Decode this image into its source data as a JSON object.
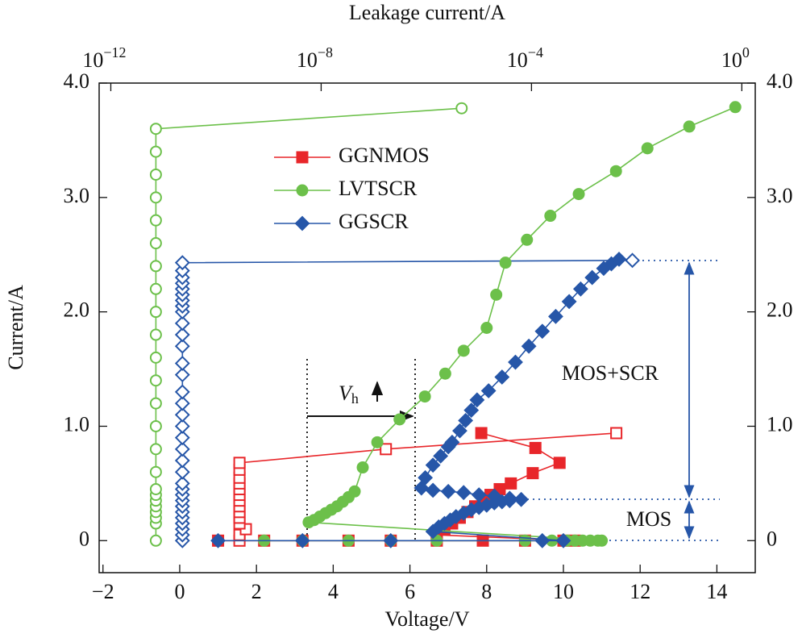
{
  "chart_data": {
    "type": "scatter",
    "xlabel": "Voltage/V",
    "ylabel": "Current/A",
    "x2label": "Leakage current/A",
    "xlim": [
      -2.1,
      15
    ],
    "xticks": [
      {
        "value": -2,
        "label": "−2"
      },
      0,
      2,
      4,
      6,
      8,
      10,
      12,
      14
    ],
    "ylim": [
      -0.28,
      4.0
    ],
    "yticks": [
      0,
      {
        "value": 1,
        "label": "1.0"
      },
      {
        "value": 2,
        "label": "2.0"
      },
      {
        "value": 3,
        "label": "3.0"
      },
      {
        "value": 4,
        "label": "4.0"
      }
    ],
    "x2lim": [
      6e-13,
      1.8
    ],
    "x2scale": "log",
    "x2ticks": [
      {
        "value": 1e-12,
        "label": "10",
        "exponent": "−12"
      },
      {
        "value": 1e-08,
        "label": "10",
        "exponent": "−8"
      },
      {
        "value": 0.0001,
        "label": "10",
        "exponent": "−4"
      },
      {
        "value": 1,
        "label": "10",
        "exponent": "0"
      }
    ],
    "series": [
      {
        "name": "GGNMOS",
        "color": "#e8262a",
        "marker": "square",
        "filled": true,
        "x": [
          1.0,
          2.2,
          3.2,
          4.4,
          5.5,
          6.7,
          7.9,
          9.0,
          10.0,
          10.3,
          6.7,
          6.9,
          7.1,
          7.3,
          7.5,
          7.7,
          7.9,
          8.1,
          8.34,
          8.63,
          9.2,
          9.9,
          9.27,
          7.86
        ],
        "values": [
          0,
          0,
          0,
          0,
          0,
          0,
          0,
          0,
          0,
          0,
          0.05,
          0.1,
          0.15,
          0.2,
          0.25,
          0.3,
          0.35,
          0.4,
          0.45,
          0.5,
          0.59,
          0.68,
          0.81,
          0.94
        ]
      },
      {
        "name": "LVTSCR",
        "color": "#6cc04a",
        "marker": "circle",
        "filled": true,
        "x": [
          2.2,
          3.2,
          4.4,
          5.5,
          6.7,
          9.0,
          9.7,
          10.1,
          10.3,
          10.5,
          10.7,
          10.9,
          11.0,
          3.36,
          3.5,
          3.65,
          3.8,
          3.95,
          4.1,
          4.25,
          4.4,
          4.56,
          4.77,
          5.15,
          5.73,
          6.39,
          6.92,
          7.4,
          8.0,
          8.25,
          8.49,
          9.05,
          9.66,
          10.4,
          11.37,
          12.19,
          13.28,
          14.48
        ],
        "values": [
          0,
          0,
          0,
          0,
          0,
          0,
          0,
          0,
          0,
          0,
          0,
          0,
          0,
          0.16,
          0.18,
          0.21,
          0.24,
          0.27,
          0.3,
          0.34,
          0.38,
          0.43,
          0.64,
          0.86,
          1.06,
          1.26,
          1.46,
          1.66,
          1.86,
          2.15,
          2.43,
          2.63,
          2.84,
          3.03,
          3.23,
          3.43,
          3.62,
          3.79
        ]
      },
      {
        "name": "GGSCR",
        "color": "#2656a8",
        "marker": "diamond",
        "filled": true,
        "x": [
          1.0,
          3.2,
          5.5,
          9.45,
          10.0,
          6.6,
          6.75,
          6.9,
          7.05,
          7.2,
          7.4,
          7.6,
          7.8,
          8.0,
          8.2,
          8.4,
          8.6,
          8.9,
          8.6,
          8.2,
          7.8,
          7.4,
          7.0,
          6.6,
          6.3,
          6.4,
          6.6,
          6.8,
          7.0,
          7.1,
          7.3,
          7.45,
          7.6,
          7.75,
          8.05,
          8.4,
          8.75,
          9.1,
          9.45,
          9.8,
          10.15,
          10.45,
          10.75,
          11.05,
          11.25,
          11.45
        ],
        "values": [
          0,
          0,
          0,
          0,
          0,
          0.08,
          0.12,
          0.15,
          0.18,
          0.21,
          0.24,
          0.27,
          0.29,
          0.31,
          0.33,
          0.34,
          0.35,
          0.36,
          0.37,
          0.39,
          0.4,
          0.42,
          0.43,
          0.44,
          0.46,
          0.55,
          0.66,
          0.74,
          0.82,
          0.86,
          0.96,
          1.05,
          1.14,
          1.23,
          1.31,
          1.43,
          1.56,
          1.7,
          1.83,
          1.96,
          2.09,
          2.2,
          2.3,
          2.38,
          2.42,
          2.46
        ]
      }
    ],
    "leakage_series": [
      {
        "color": "#e8262a",
        "marker": "square",
        "filled": false,
        "axis": "x2",
        "x": [
          2.8e-10,
          2.8e-10,
          3.7e-10,
          2.8e-10,
          2.8e-10,
          2.8e-10,
          2.8e-10,
          2.8e-10,
          2.8e-10,
          2.8e-10,
          2.8e-10,
          2.8e-10,
          2.8e-10,
          2.8e-10,
          1.7e-07,
          0.0041
        ],
        "values": [
          0,
          0.05,
          0.1,
          0.15,
          0.2,
          0.25,
          0.3,
          0.35,
          0.4,
          0.45,
          0.5,
          0.55,
          0.62,
          0.68,
          0.8,
          0.94
        ]
      },
      {
        "color": "#6cc04a",
        "marker": "circle",
        "filled": false,
        "axis": "x2",
        "x": [
          7.2e-12,
          7.2e-12,
          7.2e-12,
          7.2e-12,
          7.2e-12,
          7.2e-12,
          7.2e-12,
          7.2e-12,
          7.2e-12,
          7.2e-12,
          7.2e-12,
          7.2e-12,
          7.2e-12,
          7.2e-12,
          7.2e-12,
          7.2e-12,
          7.2e-12,
          7.2e-12,
          7.2e-12,
          7.2e-12,
          7.2e-12,
          7.2e-12,
          7.2e-12,
          7.2e-12,
          4.7e-06
        ],
        "values": [
          0,
          0.15,
          0.2,
          0.25,
          0.3,
          0.35,
          0.4,
          0.45,
          0.6,
          0.8,
          1.0,
          1.2,
          1.4,
          1.6,
          1.8,
          2.0,
          2.2,
          2.4,
          2.6,
          2.8,
          3.0,
          3.2,
          3.4,
          3.6,
          3.78
        ]
      },
      {
        "color": "#2656a8",
        "marker": "diamond",
        "filled": false,
        "axis": "x2",
        "x": [
          2.3e-11,
          2.3e-11,
          2.3e-11,
          2.3e-11,
          2.3e-11,
          2.3e-11,
          2.3e-11,
          2.3e-11,
          2.3e-11,
          2.3e-11,
          2.3e-11,
          2.3e-11,
          2.3e-11,
          2.3e-11,
          2.3e-11,
          2.3e-11,
          2.3e-11,
          2.3e-11,
          2.3e-11,
          2.3e-11,
          2.3e-11,
          2.3e-11,
          2.3e-11,
          2.3e-11,
          2.3e-11,
          2.3e-11,
          2.3e-11,
          2.3e-11,
          2.3e-11,
          2.3e-11,
          2.3e-11,
          2.3e-11,
          2.3e-11,
          0.0083
        ],
        "values": [
          0,
          0.05,
          0.1,
          0.15,
          0.2,
          0.25,
          0.3,
          0.35,
          0.4,
          0.45,
          0.5,
          0.6,
          0.7,
          0.8,
          0.9,
          1.0,
          1.1,
          1.2,
          1.3,
          1.45,
          1.55,
          1.7,
          1.8,
          1.9,
          2.0,
          2.05,
          2.1,
          2.15,
          2.2,
          2.25,
          2.3,
          2.36,
          2.43,
          2.45
        ]
      }
    ],
    "legend": "upper-center",
    "vh_label": {
      "text": "V",
      "subscript": "h"
    },
    "annotations": [
      "MOS+SCR",
      "MOS"
    ]
  }
}
